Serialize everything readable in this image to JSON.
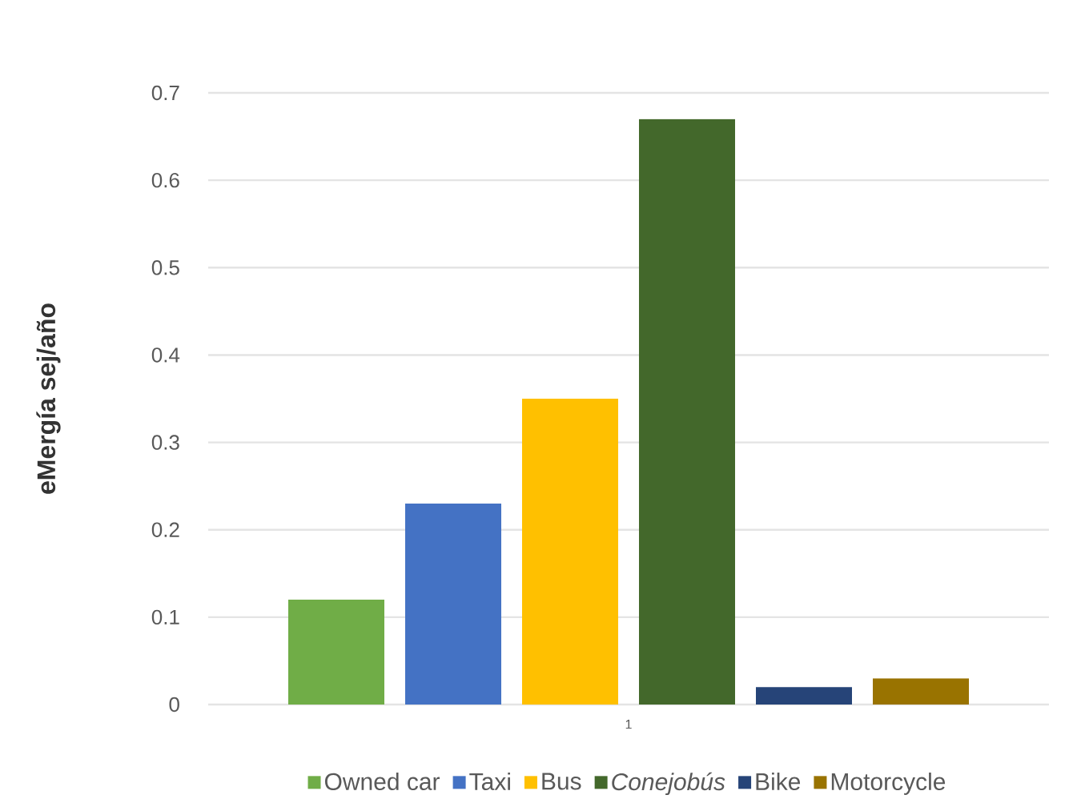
{
  "chart_data": {
    "type": "bar",
    "ylabel": "eMergía sej/año",
    "categories": [
      "1"
    ],
    "series": [
      {
        "name": "Owned car",
        "color": "#70ad47",
        "values": [
          0.12
        ]
      },
      {
        "name": "Taxi",
        "color": "#4472c4",
        "values": [
          0.23
        ]
      },
      {
        "name": "Bus",
        "color": "#ffc000",
        "values": [
          0.35
        ]
      },
      {
        "name": "*Conejobús*",
        "color": "#43682b",
        "values": [
          0.67
        ]
      },
      {
        "name": "Bike",
        "color": "#264478",
        "values": [
          0.02
        ]
      },
      {
        "name": "Motorcycle",
        "color": "#997300",
        "values": [
          0.03
        ]
      }
    ],
    "ylim": [
      0,
      0.7
    ],
    "yticks": [
      0,
      0.1,
      0.2,
      0.3,
      0.4,
      0.5,
      0.6,
      0.7
    ],
    "grid": "y",
    "legend": "bottom"
  }
}
